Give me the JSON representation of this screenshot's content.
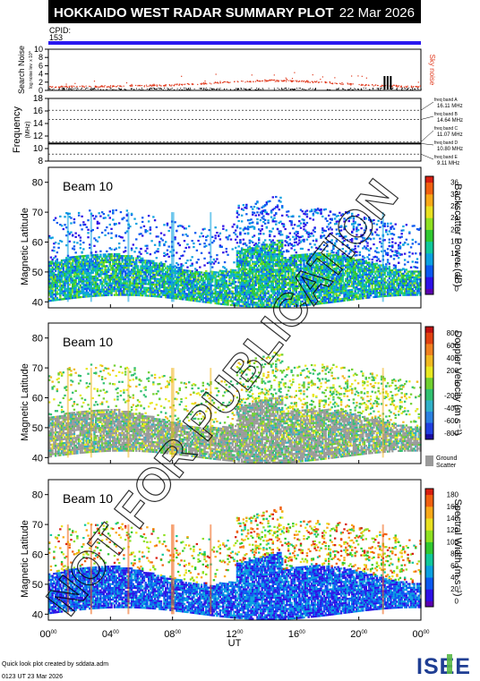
{
  "header": {
    "title": "HOKKAIDO WEST RADAR SUMMARY PLOT",
    "date": "22 Mar 2026",
    "cpid_label": "CPID:",
    "cpid_value": "153"
  },
  "noise_panel": {
    "ylabel": "Search Noise",
    "ylabel_sub": "log noise lev. x 10^",
    "ticks": [
      "0",
      "2",
      "4",
      "6",
      "8",
      "10"
    ],
    "series_label": "Sky noise",
    "colors": {
      "sky_noise": "#e03a1e",
      "search_noise": "#000000"
    }
  },
  "freq_panel": {
    "ylabel": "Frequency",
    "ylabel_unit": "(MHz)",
    "ticks": [
      "8",
      "10",
      "12",
      "14",
      "16",
      "18"
    ],
    "bands": [
      {
        "label": "freq band A",
        "value": "16.11 MHz"
      },
      {
        "label": "freq band B",
        "value": "14.64 MHz"
      },
      {
        "label": "freq band C",
        "value": "11.07 MHz"
      },
      {
        "label": "freq band D",
        "value": "10.80 MHz"
      },
      {
        "label": "freq band E",
        "value": "9.11 MHz"
      }
    ]
  },
  "panels": [
    {
      "beam": "Beam 10",
      "ylabel": "Magnetic Latitude",
      "yticks": [
        "40",
        "50",
        "60",
        "70",
        "80"
      ],
      "cb_label": "Backscatter Power (dB)",
      "cb_ticks": [
        "0",
        "4",
        "8",
        "12",
        "16",
        "20",
        "24",
        "28",
        "32",
        "36"
      ],
      "colormap": "power"
    },
    {
      "beam": "Beam 10",
      "ylabel": "Magnetic Latitude",
      "yticks": [
        "40",
        "50",
        "60",
        "70",
        "80"
      ],
      "cb_label": "Doppler Velocity (m s⁻¹)",
      "cb_ticks": [
        "-800",
        "-600",
        "-400",
        "-200",
        "0",
        "200",
        "400",
        "600",
        "800"
      ],
      "colormap": "velocity",
      "gs_label": "Ground",
      "gs_label2": "Scatter"
    },
    {
      "beam": "Beam 10",
      "ylabel": "Magnetic Latitude",
      "yticks": [
        "40",
        "50",
        "60",
        "70",
        "80"
      ],
      "cb_label": "Spectral Width (m s⁻¹)",
      "cb_ticks": [
        "0",
        "20",
        "40",
        "60",
        "80",
        "100",
        "120",
        "140",
        "160",
        "180"
      ],
      "colormap": "width"
    }
  ],
  "x_axis": {
    "ticks": [
      "00",
      "04",
      "08",
      "12",
      "16",
      "20",
      "00"
    ],
    "tick_suffix": "00",
    "label": "UT"
  },
  "footer": {
    "credit": "Quick look plot created by sddata.adm",
    "timestamp": "0123 UT 23 Mar 2026",
    "logo_text": "ISEE"
  },
  "watermark": "NOT FOR PUBLICATION",
  "chart_data": [
    {
      "type": "scatter",
      "title": "Search Noise",
      "x_range_ut_hours": [
        0,
        24
      ],
      "ylim": [
        0,
        10
      ],
      "series": [
        {
          "name": "Sky noise",
          "x": [
            0,
            2,
            4,
            6,
            8,
            10,
            12,
            14,
            16,
            18,
            20,
            22,
            24
          ],
          "y": [
            1.0,
            1.0,
            1.1,
            1.2,
            1.4,
            1.8,
            2.2,
            2.5,
            2.4,
            2.0,
            1.5,
            1.2,
            1.0
          ]
        }
      ]
    },
    {
      "type": "line",
      "title": "Frequency",
      "x_range_ut_hours": [
        0,
        24
      ],
      "ylim": [
        8,
        18
      ],
      "series": [
        {
          "x": [
            0,
            24
          ],
          "y": [
            10.8,
            10.8
          ]
        }
      ]
    },
    {
      "type": "heatmap",
      "panel": "Backscatter Power",
      "x_range_ut_hours": [
        0,
        24
      ],
      "ylim": [
        38,
        85
      ],
      "zlim": [
        0,
        36
      ]
    },
    {
      "type": "heatmap",
      "panel": "Doppler Velocity",
      "x_range_ut_hours": [
        0,
        24
      ],
      "ylim": [
        38,
        85
      ],
      "zlim": [
        -800,
        800
      ]
    },
    {
      "type": "heatmap",
      "panel": "Spectral Width",
      "x_range_ut_hours": [
        0,
        24
      ],
      "ylim": [
        38,
        85
      ],
      "zlim": [
        0,
        180
      ]
    }
  ]
}
